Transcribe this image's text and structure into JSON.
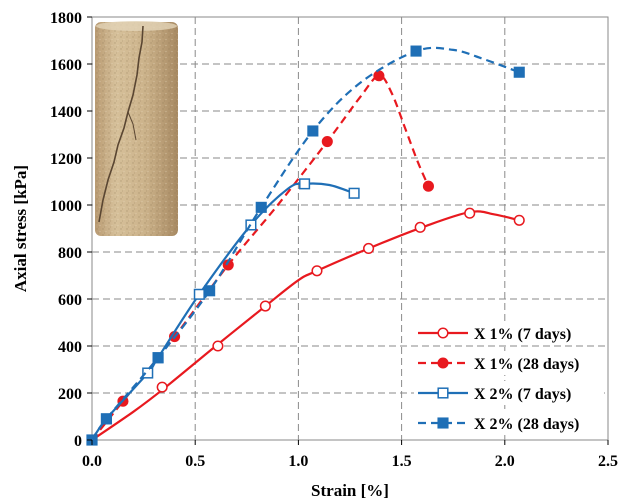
{
  "chart_data": {
    "type": "line",
    "xlabel": "Strain [%]",
    "ylabel": "Axial stress [kPa]",
    "xlim": [
      0,
      2.5
    ],
    "ylim": [
      0,
      1800
    ],
    "xticks": [
      0,
      0.5,
      1,
      1.5,
      2,
      2.5
    ],
    "xtick_labels": [
      "0.0",
      "0.5",
      "1.0",
      "1.5",
      "2.0",
      "2.5"
    ],
    "yticks": [
      0,
      200,
      400,
      600,
      800,
      1000,
      1200,
      1400,
      1600,
      1800
    ],
    "grid": true,
    "legend_position": "bottom-right",
    "inset": "photo of cracked cylindrical specimen (top-left)",
    "series": [
      {
        "name": "X 1% (7 days)",
        "color": "#e8191f",
        "line": "solid",
        "marker": "circle-open",
        "markers": [
          [
            0,
            0
          ],
          [
            0.34,
            225
          ],
          [
            0.61,
            400
          ],
          [
            0.84,
            570
          ],
          [
            1.09,
            720
          ],
          [
            1.34,
            815
          ],
          [
            1.59,
            905
          ],
          [
            1.83,
            965
          ],
          [
            2.07,
            935
          ]
        ],
        "curve": [
          [
            0,
            0
          ],
          [
            0.2,
            120
          ],
          [
            0.35,
            220
          ],
          [
            0.6,
            400
          ],
          [
            0.84,
            570
          ],
          [
            1.0,
            680
          ],
          [
            1.09,
            720
          ],
          [
            1.34,
            815
          ],
          [
            1.6,
            905
          ],
          [
            1.83,
            970
          ],
          [
            1.95,
            960
          ],
          [
            2.07,
            935
          ]
        ]
      },
      {
        "name": "X 1% (28 days)",
        "color": "#e8191f",
        "line": "dashed",
        "marker": "circle-filled",
        "markers": [
          [
            0,
            0
          ],
          [
            0.15,
            165
          ],
          [
            0.4,
            440
          ],
          [
            0.66,
            745
          ],
          [
            1.14,
            1270
          ],
          [
            1.39,
            1550
          ],
          [
            1.63,
            1080
          ]
        ],
        "curve": [
          [
            0,
            0
          ],
          [
            0.15,
            165
          ],
          [
            0.4,
            440
          ],
          [
            0.66,
            745
          ],
          [
            0.9,
            1000
          ],
          [
            1.14,
            1270
          ],
          [
            1.3,
            1460
          ],
          [
            1.39,
            1550
          ],
          [
            1.45,
            1480
          ],
          [
            1.52,
            1320
          ],
          [
            1.58,
            1180
          ],
          [
            1.63,
            1080
          ]
        ]
      },
      {
        "name": "X 2% (7 days)",
        "color": "#1f6fb6",
        "line": "solid",
        "marker": "square-open",
        "markers": [
          [
            0,
            0
          ],
          [
            0.07,
            90
          ],
          [
            0.27,
            285
          ],
          [
            0.32,
            350
          ],
          [
            0.52,
            620
          ],
          [
            0.77,
            915
          ],
          [
            1.03,
            1090
          ],
          [
            1.27,
            1050
          ]
        ],
        "curve": [
          [
            0,
            0
          ],
          [
            0.07,
            90
          ],
          [
            0.27,
            285
          ],
          [
            0.32,
            350
          ],
          [
            0.52,
            620
          ],
          [
            0.77,
            915
          ],
          [
            0.95,
            1070
          ],
          [
            1.03,
            1090
          ],
          [
            1.15,
            1085
          ],
          [
            1.27,
            1050
          ]
        ]
      },
      {
        "name": "X 2% (28 days)",
        "color": "#1f6fb6",
        "line": "dashed",
        "marker": "square-filled",
        "markers": [
          [
            0,
            0
          ],
          [
            0.07,
            90
          ],
          [
            0.32,
            350
          ],
          [
            0.57,
            635
          ],
          [
            0.82,
            990
          ],
          [
            1.07,
            1315
          ],
          [
            1.57,
            1655
          ],
          [
            2.07,
            1565
          ]
        ],
        "curve": [
          [
            0,
            0
          ],
          [
            0.07,
            90
          ],
          [
            0.32,
            350
          ],
          [
            0.57,
            635
          ],
          [
            0.82,
            990
          ],
          [
            1.07,
            1315
          ],
          [
            1.3,
            1520
          ],
          [
            1.57,
            1655
          ],
          [
            1.75,
            1660
          ],
          [
            1.9,
            1620
          ],
          [
            2.07,
            1565
          ]
        ]
      }
    ]
  }
}
